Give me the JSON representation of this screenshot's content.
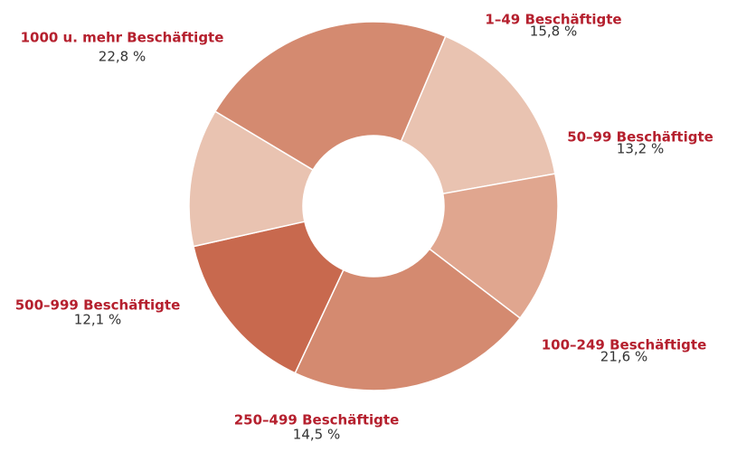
{
  "chart_data": {
    "type": "pie",
    "categories": [
      "1–49 Beschäftigte",
      "50–99 Beschäftigte",
      "100–249 Beschäftigte",
      "250–499 Beschäftigte",
      "500–999 Beschäftigte",
      "1000 u. mehr Beschäftigte"
    ],
    "values": [
      15.8,
      13.2,
      21.6,
      14.5,
      12.1,
      22.8
    ],
    "value_labels": [
      "15,8 %",
      "13,2 %",
      "21,6 %",
      "14,5 %",
      "12,1 %",
      "22,8 %"
    ],
    "colors": [
      "#e9c3b1",
      "#e0a68f",
      "#d48a70",
      "#c8694e",
      "#e9c3b1",
      "#d48a70"
    ]
  }
}
